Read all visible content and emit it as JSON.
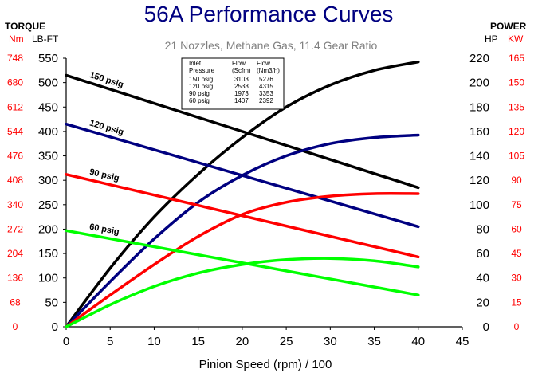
{
  "chart_data": {
    "type": "line",
    "title": "56A Performance Curves",
    "subtitle": "21 Nozzles, Methane Gas, 11.4 Gear Ratio",
    "xlabel": "Pinion Speed (rpm) / 100",
    "xlim": [
      0,
      45
    ],
    "xticks": [
      "0",
      "5",
      "10",
      "15",
      "20",
      "25",
      "30",
      "35",
      "40",
      "45"
    ],
    "left_axis": {
      "heading": "TORQUE",
      "unit_metric": "Nm",
      "unit_imperial": "LB-FT",
      "ylim": [
        0,
        550
      ],
      "ticks": [
        "0",
        "50",
        "100",
        "150",
        "200",
        "250",
        "300",
        "350",
        "400",
        "450",
        "500",
        "550"
      ],
      "metric_ticks": [
        "0",
        "68",
        "136",
        "204",
        "272",
        "340",
        "408",
        "476",
        "544",
        "612",
        "680",
        "748"
      ]
    },
    "right_axis": {
      "heading": "POWER",
      "unit_imperial": "HP",
      "unit_metric": "KW",
      "ylim": [
        0,
        220
      ],
      "ticks": [
        "0",
        "20",
        "40",
        "60",
        "80",
        "100",
        "120",
        "140",
        "160",
        "180",
        "200",
        "220"
      ],
      "metric_ticks": [
        "0",
        "15",
        "30",
        "45",
        "60",
        "75",
        "90",
        "105",
        "120",
        "135",
        "150",
        "165"
      ]
    },
    "grid": false,
    "series": [
      {
        "name": "150 psig",
        "color": "#000000",
        "torque": {
          "x": [
            0,
            40
          ],
          "y": [
            515,
            285
          ]
        },
        "power_hp": {
          "x": [
            0,
            5,
            10,
            15,
            20,
            25,
            30,
            35,
            40
          ],
          "y": [
            0,
            48,
            90,
            125,
            155,
            180,
            198,
            210,
            217
          ]
        }
      },
      {
        "name": "120 psig",
        "color": "#000080",
        "torque": {
          "x": [
            0,
            40
          ],
          "y": [
            415,
            205
          ]
        },
        "power_hp": {
          "x": [
            0,
            5,
            10,
            15,
            20,
            25,
            30,
            35,
            40
          ],
          "y": [
            0,
            37,
            72,
            102,
            124,
            140,
            150,
            155,
            157
          ]
        }
      },
      {
        "name": "90 psig",
        "color": "#ff0000",
        "torque": {
          "x": [
            0,
            40
          ],
          "y": [
            312,
            143
          ]
        },
        "power_hp": {
          "x": [
            0,
            5,
            10,
            15,
            20,
            25,
            30,
            35,
            40
          ],
          "y": [
            0,
            26,
            51,
            74,
            92,
            102,
            107,
            109,
            109
          ]
        }
      },
      {
        "name": "60 psig",
        "color": "#00ff00",
        "torque": {
          "x": [
            0,
            40
          ],
          "y": [
            197,
            65
          ]
        },
        "power_hp": {
          "x": [
            0,
            5,
            10,
            15,
            20,
            25,
            30,
            35,
            40
          ],
          "y": [
            0,
            18,
            33,
            44,
            51,
            55,
            56,
            54,
            49
          ]
        }
      }
    ],
    "table": {
      "headers": [
        [
          "Inlet",
          "Pressure"
        ],
        [
          "Flow",
          "(Scfm)"
        ],
        [
          "Flow",
          "(Nm3/h)"
        ]
      ],
      "rows": [
        [
          "150  psig",
          "3103",
          "5276"
        ],
        [
          "120  psig",
          "2538",
          "4315"
        ],
        [
          "90  psig",
          "1973",
          "3353"
        ],
        [
          "60  psig",
          "1407",
          "2392"
        ]
      ]
    }
  },
  "colors": {
    "title": "#000080",
    "metric": "#ff0000",
    "axis": "#000000"
  }
}
